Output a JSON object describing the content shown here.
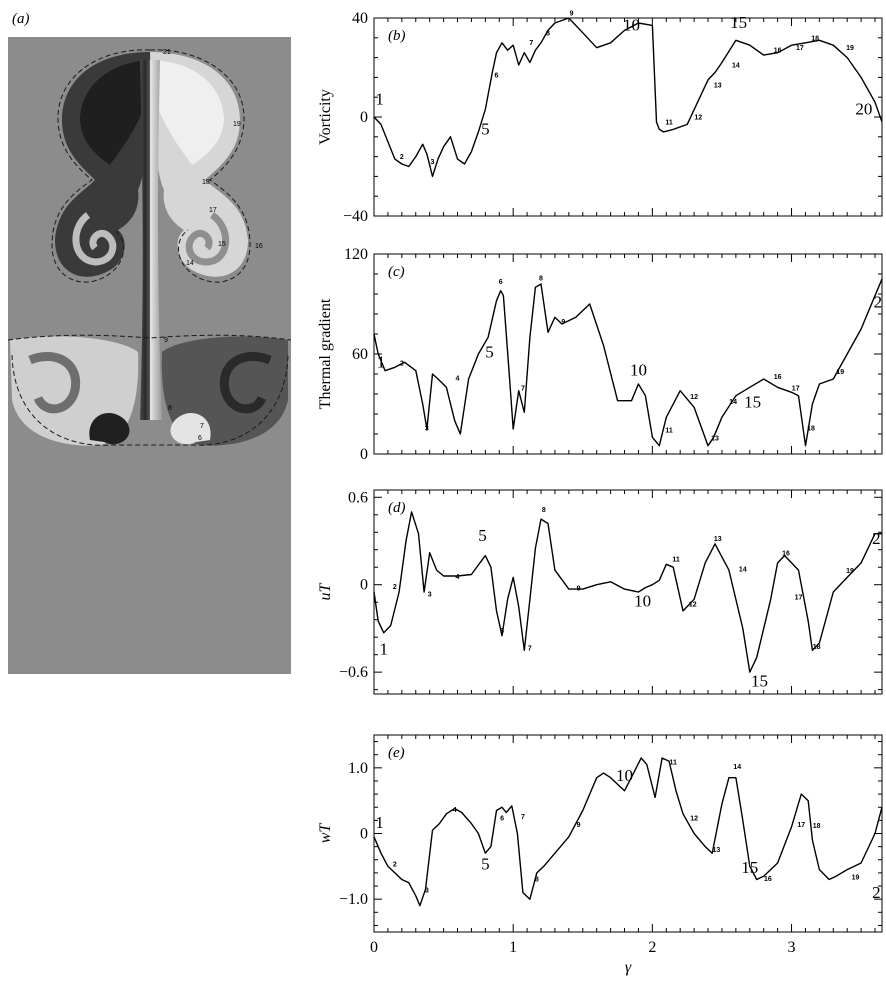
{
  "figure": {
    "panel_a_label": "(a)",
    "contour_labels": [
      "21",
      "19",
      "18",
      "17",
      "15",
      "14",
      "16",
      "9",
      "8",
      "7",
      "6"
    ]
  },
  "chart_data": [
    {
      "id": "b",
      "type": "line",
      "panel_label": "(b)",
      "ylabel": "Vorticity",
      "xlabel": "",
      "xlim": [
        0,
        3.65
      ],
      "ylim": [
        -40,
        40
      ],
      "yticks": [
        -40,
        0,
        40
      ],
      "yticklabels": [
        "−40",
        "0",
        "40"
      ],
      "x": [
        0,
        0.05,
        0.1,
        0.15,
        0.2,
        0.25,
        0.3,
        0.35,
        0.38,
        0.42,
        0.46,
        0.5,
        0.55,
        0.6,
        0.65,
        0.7,
        0.75,
        0.8,
        0.85,
        0.88,
        0.92,
        0.96,
        1.0,
        1.04,
        1.08,
        1.12,
        1.16,
        1.2,
        1.25,
        1.3,
        1.4,
        1.5,
        1.6,
        1.7,
        1.8,
        1.9,
        2.0,
        2.03,
        2.05,
        2.08,
        2.15,
        2.25,
        2.35,
        2.4,
        2.45,
        2.5,
        2.6,
        2.7,
        2.8,
        2.9,
        3.0,
        3.1,
        3.2,
        3.3,
        3.4,
        3.5,
        3.6,
        3.65
      ],
      "y": [
        0,
        -3,
        -10,
        -17,
        -19,
        -20,
        -16,
        -11,
        -15,
        -24,
        -17,
        -12,
        -8,
        -17,
        -19,
        -14,
        -6,
        3,
        18,
        26,
        30,
        27,
        29,
        21,
        26,
        22,
        27,
        30,
        35,
        38,
        40,
        34,
        28,
        30,
        35,
        38,
        37,
        -2,
        -5,
        -6,
        -5,
        -3,
        9,
        15,
        18,
        22,
        31,
        29,
        25,
        26,
        29,
        30,
        31,
        29,
        24,
        16,
        6,
        -2
      ],
      "markers": [
        {
          "label": "1",
          "x": 0.04,
          "y": 5,
          "size": "big"
        },
        {
          "label": "2",
          "x": 0.2,
          "y": -17,
          "size": "small"
        },
        {
          "label": "3",
          "x": 0.42,
          "y": -19,
          "size": "small"
        },
        {
          "label": "5",
          "x": 0.8,
          "y": -7,
          "size": "big"
        },
        {
          "label": "6",
          "x": 0.88,
          "y": 16,
          "size": "small"
        },
        {
          "label": "7",
          "x": 1.13,
          "y": 29,
          "size": "small"
        },
        {
          "label": "8",
          "x": 1.25,
          "y": 33,
          "size": "small"
        },
        {
          "label": "9",
          "x": 1.42,
          "y": 41,
          "size": "small"
        },
        {
          "label": "10",
          "x": 1.85,
          "y": 35,
          "size": "big"
        },
        {
          "label": "11",
          "x": 2.12,
          "y": -3,
          "size": "small"
        },
        {
          "label": "12",
          "x": 2.33,
          "y": -1,
          "size": "small"
        },
        {
          "label": "13",
          "x": 2.47,
          "y": 12,
          "size": "small"
        },
        {
          "label": "14",
          "x": 2.6,
          "y": 20,
          "size": "small"
        },
        {
          "label": "15",
          "x": 2.62,
          "y": 36,
          "size": "big"
        },
        {
          "label": "16",
          "x": 2.9,
          "y": 26,
          "size": "small"
        },
        {
          "label": "17",
          "x": 3.06,
          "y": 27,
          "size": "small"
        },
        {
          "label": "18",
          "x": 3.17,
          "y": 31,
          "size": "small"
        },
        {
          "label": "19",
          "x": 3.42,
          "y": 27,
          "size": "small"
        },
        {
          "label": "20",
          "x": 3.52,
          "y": 1,
          "size": "big"
        }
      ]
    },
    {
      "id": "c",
      "type": "line",
      "panel_label": "(c)",
      "ylabel": "Thermal gradient",
      "xlabel": "",
      "xlim": [
        0,
        3.65
      ],
      "ylim": [
        0,
        120
      ],
      "yticks": [
        0,
        60,
        120
      ],
      "yticklabels": [
        "0",
        "60",
        "120"
      ],
      "x": [
        0,
        0.03,
        0.08,
        0.15,
        0.22,
        0.3,
        0.35,
        0.38,
        0.42,
        0.46,
        0.52,
        0.58,
        0.62,
        0.68,
        0.75,
        0.82,
        0.88,
        0.91,
        0.93,
        0.97,
        1.0,
        1.04,
        1.08,
        1.12,
        1.16,
        1.2,
        1.25,
        1.3,
        1.35,
        1.45,
        1.55,
        1.65,
        1.75,
        1.85,
        1.9,
        1.95,
        2.0,
        2.05,
        2.1,
        2.2,
        2.3,
        2.4,
        2.44,
        2.5,
        2.6,
        2.7,
        2.8,
        2.9,
        3.0,
        3.05,
        3.1,
        3.15,
        3.2,
        3.3,
        3.4,
        3.5,
        3.6,
        3.65
      ],
      "y": [
        72,
        60,
        50,
        52,
        55,
        50,
        30,
        15,
        48,
        45,
        40,
        20,
        12,
        45,
        60,
        70,
        92,
        98,
        95,
        50,
        15,
        38,
        25,
        70,
        100,
        102,
        73,
        82,
        78,
        82,
        90,
        65,
        32,
        32,
        42,
        35,
        10,
        5,
        22,
        38,
        28,
        5,
        10,
        22,
        35,
        40,
        45,
        40,
        37,
        35,
        5,
        30,
        42,
        45,
        60,
        75,
        95,
        105
      ],
      "markers": [
        {
          "label": "1",
          "x": 0.05,
          "y": 52,
          "size": "big"
        },
        {
          "label": "2",
          "x": 0.2,
          "y": 53,
          "size": "small"
        },
        {
          "label": "3",
          "x": 0.38,
          "y": 14,
          "size": "small"
        },
        {
          "label": "4",
          "x": 0.6,
          "y": 44,
          "size": "small"
        },
        {
          "label": "5",
          "x": 0.83,
          "y": 58,
          "size": "big"
        },
        {
          "label": "6",
          "x": 0.91,
          "y": 102,
          "size": "small"
        },
        {
          "label": "7",
          "x": 1.07,
          "y": 38,
          "size": "small"
        },
        {
          "label": "8",
          "x": 1.2,
          "y": 104,
          "size": "small"
        },
        {
          "label": "9",
          "x": 1.36,
          "y": 78,
          "size": "small"
        },
        {
          "label": "10",
          "x": 1.9,
          "y": 47,
          "size": "big"
        },
        {
          "label": "11",
          "x": 2.12,
          "y": 13,
          "size": "small"
        },
        {
          "label": "12",
          "x": 2.3,
          "y": 33,
          "size": "small"
        },
        {
          "label": "13",
          "x": 2.45,
          "y": 8,
          "size": "small"
        },
        {
          "label": "14",
          "x": 2.58,
          "y": 30,
          "size": "small"
        },
        {
          "label": "15",
          "x": 2.72,
          "y": 28,
          "size": "big"
        },
        {
          "label": "16",
          "x": 2.9,
          "y": 45,
          "size": "small"
        },
        {
          "label": "17",
          "x": 3.03,
          "y": 38,
          "size": "small"
        },
        {
          "label": "18",
          "x": 3.14,
          "y": 14,
          "size": "small"
        },
        {
          "label": "19",
          "x": 3.35,
          "y": 48,
          "size": "small"
        },
        {
          "label": "2",
          "x": 3.62,
          "y": 88,
          "size": "big"
        }
      ]
    },
    {
      "id": "d",
      "type": "line",
      "panel_label": "(d)",
      "ylabel": "uT",
      "xlabel": "",
      "xlim": [
        0,
        3.65
      ],
      "ylim": [
        -0.75,
        0.65
      ],
      "yticks": [
        -0.6,
        0,
        0.6
      ],
      "yticklabels": [
        "−0.6",
        "0",
        "0.6"
      ],
      "x": [
        0,
        0.03,
        0.07,
        0.12,
        0.18,
        0.23,
        0.27,
        0.32,
        0.36,
        0.4,
        0.45,
        0.5,
        0.55,
        0.6,
        0.7,
        0.8,
        0.84,
        0.88,
        0.92,
        0.96,
        1.0,
        1.04,
        1.08,
        1.12,
        1.16,
        1.2,
        1.25,
        1.3,
        1.4,
        1.5,
        1.6,
        1.7,
        1.8,
        1.9,
        1.95,
        2.0,
        2.05,
        2.1,
        2.15,
        2.22,
        2.3,
        2.38,
        2.45,
        2.55,
        2.65,
        2.7,
        2.75,
        2.85,
        2.9,
        2.95,
        3.05,
        3.12,
        3.15,
        3.2,
        3.3,
        3.4,
        3.5,
        3.6,
        3.65
      ],
      "y": [
        -0.05,
        -0.25,
        -0.33,
        -0.28,
        -0.05,
        0.3,
        0.5,
        0.35,
        -0.05,
        0.22,
        0.1,
        0.06,
        0.06,
        0.06,
        0.07,
        0.2,
        0.12,
        -0.18,
        -0.35,
        -0.1,
        0.05,
        -0.15,
        -0.45,
        -0.1,
        0.25,
        0.45,
        0.42,
        0.1,
        -0.03,
        -0.03,
        0.0,
        0.02,
        -0.03,
        -0.05,
        -0.02,
        0.0,
        0.03,
        0.14,
        0.12,
        -0.18,
        -0.1,
        0.15,
        0.28,
        0.1,
        -0.3,
        -0.6,
        -0.5,
        -0.1,
        0.15,
        0.2,
        0.1,
        -0.25,
        -0.45,
        -0.4,
        -0.05,
        0.05,
        0.15,
        0.35,
        0.35
      ],
      "markers": [
        {
          "label": "1",
          "x": 0.07,
          "y": -0.48,
          "size": "big"
        },
        {
          "label": "2",
          "x": 0.15,
          "y": -0.03,
          "size": "small"
        },
        {
          "label": "3",
          "x": 0.4,
          "y": -0.08,
          "size": "small"
        },
        {
          "label": "4",
          "x": 0.6,
          "y": 0.04,
          "size": "small"
        },
        {
          "label": "5",
          "x": 0.78,
          "y": 0.3,
          "size": "big"
        },
        {
          "label": "6",
          "x": 0.92,
          "y": -0.33,
          "size": "small"
        },
        {
          "label": "7",
          "x": 1.12,
          "y": -0.45,
          "size": "small"
        },
        {
          "label": "8",
          "x": 1.22,
          "y": 0.5,
          "size": "small"
        },
        {
          "label": "9",
          "x": 1.47,
          "y": -0.04,
          "size": "small"
        },
        {
          "label": "10",
          "x": 1.93,
          "y": -0.15,
          "size": "big"
        },
        {
          "label": "11",
          "x": 2.17,
          "y": 0.16,
          "size": "small"
        },
        {
          "label": "12",
          "x": 2.29,
          "y": -0.15,
          "size": "small"
        },
        {
          "label": "13",
          "x": 2.47,
          "y": 0.3,
          "size": "small"
        },
        {
          "label": "14",
          "x": 2.65,
          "y": 0.09,
          "size": "small"
        },
        {
          "label": "15",
          "x": 2.77,
          "y": -0.7,
          "size": "big"
        },
        {
          "label": "16",
          "x": 2.96,
          "y": 0.2,
          "size": "small"
        },
        {
          "label": "17",
          "x": 3.05,
          "y": -0.1,
          "size": "small"
        },
        {
          "label": "18",
          "x": 3.18,
          "y": -0.44,
          "size": "small"
        },
        {
          "label": "19",
          "x": 3.42,
          "y": 0.08,
          "size": "small"
        },
        {
          "label": "2",
          "x": 3.61,
          "y": 0.28,
          "size": "big"
        }
      ]
    },
    {
      "id": "e",
      "type": "line",
      "panel_label": "(e)",
      "ylabel": "wT",
      "xlabel": "γ",
      "xlim": [
        0,
        3.65
      ],
      "ylim": [
        -1.5,
        1.5
      ],
      "yticks": [
        -1.0,
        0,
        1.0
      ],
      "yticklabels": [
        "−1.0",
        "0",
        "1.0"
      ],
      "xticks": [
        0,
        1,
        2,
        3
      ],
      "xticklabels": [
        "0",
        "1",
        "2",
        "3"
      ],
      "x": [
        0,
        0.05,
        0.1,
        0.15,
        0.2,
        0.25,
        0.3,
        0.33,
        0.37,
        0.42,
        0.47,
        0.52,
        0.58,
        0.63,
        0.7,
        0.75,
        0.8,
        0.84,
        0.88,
        0.92,
        0.95,
        0.99,
        1.03,
        1.07,
        1.12,
        1.17,
        1.22,
        1.3,
        1.4,
        1.5,
        1.6,
        1.65,
        1.7,
        1.8,
        1.86,
        1.92,
        1.96,
        2.02,
        2.07,
        2.12,
        2.17,
        2.22,
        2.3,
        2.38,
        2.43,
        2.5,
        2.55,
        2.6,
        2.65,
        2.7,
        2.75,
        2.8,
        2.9,
        3.0,
        3.07,
        3.12,
        3.15,
        3.2,
        3.27,
        3.32,
        3.4,
        3.5,
        3.6,
        3.65
      ],
      "y": [
        -0.05,
        -0.3,
        -0.5,
        -0.6,
        -0.7,
        -0.75,
        -0.95,
        -1.1,
        -0.85,
        0.05,
        0.15,
        0.3,
        0.38,
        0.32,
        0.15,
        0.0,
        -0.3,
        -0.2,
        0.35,
        0.4,
        0.32,
        0.42,
        0.0,
        -0.9,
        -1.0,
        -0.6,
        -0.5,
        -0.3,
        -0.05,
        0.35,
        0.85,
        0.92,
        0.85,
        0.65,
        0.9,
        1.15,
        1.05,
        0.55,
        1.15,
        1.1,
        0.65,
        0.3,
        0.0,
        -0.2,
        -0.3,
        0.45,
        0.85,
        0.85,
        0.2,
        -0.5,
        -0.7,
        -0.65,
        -0.45,
        0.1,
        0.6,
        0.5,
        -0.1,
        -0.55,
        -0.7,
        -0.65,
        -0.55,
        -0.45,
        0.0,
        0.4
      ],
      "markers": [
        {
          "label": "1",
          "x": 0.04,
          "y": 0.08,
          "size": "big"
        },
        {
          "label": "2",
          "x": 0.15,
          "y": -0.5,
          "size": "small"
        },
        {
          "label": "3",
          "x": 0.38,
          "y": -0.9,
          "size": "small"
        },
        {
          "label": "4",
          "x": 0.58,
          "y": 0.33,
          "size": "small"
        },
        {
          "label": "5",
          "x": 0.8,
          "y": -0.55,
          "size": "big"
        },
        {
          "label": "6",
          "x": 0.92,
          "y": 0.2,
          "size": "small"
        },
        {
          "label": "7",
          "x": 1.07,
          "y": 0.22,
          "size": "small"
        },
        {
          "label": "8",
          "x": 1.17,
          "y": -0.73,
          "size": "small"
        },
        {
          "label": "9",
          "x": 1.47,
          "y": 0.1,
          "size": "small"
        },
        {
          "label": "10",
          "x": 1.8,
          "y": 0.8,
          "size": "big"
        },
        {
          "label": "11",
          "x": 2.15,
          "y": 1.05,
          "size": "small"
        },
        {
          "label": "12",
          "x": 2.3,
          "y": 0.2,
          "size": "small"
        },
        {
          "label": "13",
          "x": 2.46,
          "y": -0.28,
          "size": "small"
        },
        {
          "label": "14",
          "x": 2.61,
          "y": 0.98,
          "size": "small"
        },
        {
          "label": "15",
          "x": 2.7,
          "y": -0.6,
          "size": "big"
        },
        {
          "label": "16",
          "x": 2.83,
          "y": -0.72,
          "size": "small"
        },
        {
          "label": "17",
          "x": 3.07,
          "y": 0.1,
          "size": "small"
        },
        {
          "label": "18",
          "x": 3.18,
          "y": 0.08,
          "size": "small"
        },
        {
          "label": "19",
          "x": 3.46,
          "y": -0.7,
          "size": "small"
        },
        {
          "label": "2",
          "x": 3.61,
          "y": -0.98,
          "size": "big"
        }
      ]
    }
  ]
}
